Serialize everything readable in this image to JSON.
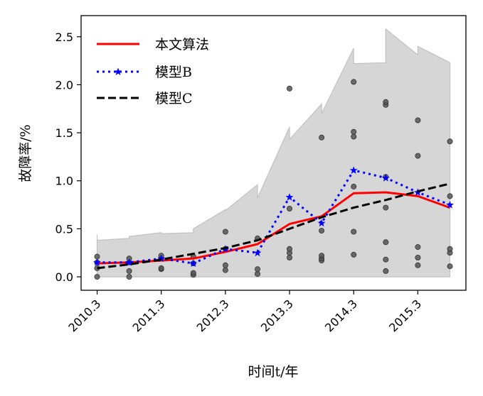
{
  "chart_data": {
    "type": "line",
    "title": "",
    "xlabel": "时间t/年",
    "ylabel": "故障率/%",
    "ylim": [
      -0.14,
      2.72
    ],
    "xlim": [
      -0.5,
      11.5
    ],
    "yticks": [
      0.0,
      0.5,
      1.0,
      1.5,
      2.0,
      2.5
    ],
    "ytick_labels": [
      "0.0",
      "0.5",
      "1.0",
      "1.5",
      "2.0",
      "2.5"
    ],
    "xticks": [
      0,
      2,
      4,
      6,
      8,
      10
    ],
    "xtick_labels": [
      "2010.3",
      "2011.3",
      "2012.3",
      "2013.3",
      "2014.3",
      "2015.3"
    ],
    "x": [
      0,
      1,
      2,
      3,
      4,
      5,
      6,
      7,
      8,
      9,
      10,
      11
    ],
    "grid": false,
    "legend_position": "top-left",
    "series": [
      {
        "name": "本文算法",
        "style": "solid",
        "color": "#ff0000",
        "values": [
          0.14,
          0.15,
          0.17,
          0.19,
          0.26,
          0.34,
          0.55,
          0.63,
          0.87,
          0.88,
          0.84,
          0.72
        ]
      },
      {
        "name": "模型B",
        "style": "dotted",
        "color": "#0000ff",
        "values": [
          0.15,
          0.15,
          0.19,
          0.14,
          0.29,
          0.25,
          0.83,
          0.56,
          1.11,
          1.03,
          0.88,
          0.75
        ]
      },
      {
        "name": "模型C",
        "style": "dashed",
        "color": "#000000",
        "values": [
          0.09,
          0.13,
          0.18,
          0.24,
          0.3,
          0.38,
          0.5,
          0.62,
          0.72,
          0.8,
          0.89,
          0.97
        ]
      }
    ],
    "band": {
      "color": "#d6d6d6",
      "x": [
        0,
        0,
        1,
        1,
        2,
        2,
        3,
        3,
        4,
        4,
        5,
        5,
        6,
        6,
        7,
        7,
        8,
        8,
        9,
        9,
        10,
        10,
        11
      ],
      "upper": [
        0.44,
        0.38,
        0.4,
        0.42,
        0.46,
        0.45,
        0.46,
        0.5,
        0.7,
        0.69,
        0.96,
        0.82,
        1.56,
        1.43,
        1.8,
        1.7,
        2.38,
        2.22,
        2.23,
        2.58,
        2.31,
        2.4,
        2.23
      ],
      "lower": [
        0.0,
        0.0,
        0.0,
        0.0,
        0.0,
        0.0,
        0.0,
        0.0,
        0.0,
        0.0,
        0.0,
        0.0,
        0.0,
        0.0,
        0.0,
        0.0,
        0.0,
        0.0,
        0.0,
        0.0,
        0.0,
        0.0,
        0.0
      ]
    },
    "scatter": {
      "color": "#555555",
      "points": [
        [
          0,
          0.0
        ],
        [
          0,
          0.09
        ],
        [
          0,
          0.15
        ],
        [
          0,
          0.21
        ],
        [
          1,
          0.0
        ],
        [
          1,
          0.06
        ],
        [
          1,
          0.15
        ],
        [
          1,
          0.19
        ],
        [
          2,
          0.08
        ],
        [
          2,
          0.09
        ],
        [
          2,
          0.19
        ],
        [
          2,
          0.22
        ],
        [
          3,
          0.02
        ],
        [
          3,
          0.04
        ],
        [
          3,
          0.14
        ],
        [
          3,
          0.21
        ],
        [
          4,
          0.07
        ],
        [
          4,
          0.12
        ],
        [
          4,
          0.29
        ],
        [
          4,
          0.47
        ],
        [
          5,
          0.03
        ],
        [
          5,
          0.08
        ],
        [
          5,
          0.4
        ],
        [
          6,
          0.2
        ],
        [
          6,
          0.25
        ],
        [
          6,
          0.29
        ],
        [
          6,
          0.71
        ],
        [
          6,
          1.96
        ],
        [
          7,
          0.17
        ],
        [
          7,
          0.19
        ],
        [
          7,
          0.22
        ],
        [
          7,
          0.48
        ],
        [
          7,
          1.45
        ],
        [
          8,
          0.23
        ],
        [
          8,
          0.47
        ],
        [
          8,
          0.94
        ],
        [
          8,
          1.46
        ],
        [
          8,
          1.51
        ],
        [
          8,
          2.03
        ],
        [
          9,
          0.06
        ],
        [
          9,
          0.18
        ],
        [
          9,
          0.36
        ],
        [
          9,
          0.72
        ],
        [
          9,
          1.04
        ],
        [
          9,
          1.79
        ],
        [
          9,
          1.82
        ],
        [
          10,
          0.12
        ],
        [
          10,
          0.2
        ],
        [
          10,
          0.31
        ],
        [
          10,
          1.26
        ],
        [
          10,
          1.63
        ],
        [
          11,
          0.11
        ],
        [
          11,
          0.25
        ],
        [
          11,
          0.29
        ],
        [
          11,
          0.84
        ],
        [
          11,
          1.41
        ]
      ]
    }
  }
}
